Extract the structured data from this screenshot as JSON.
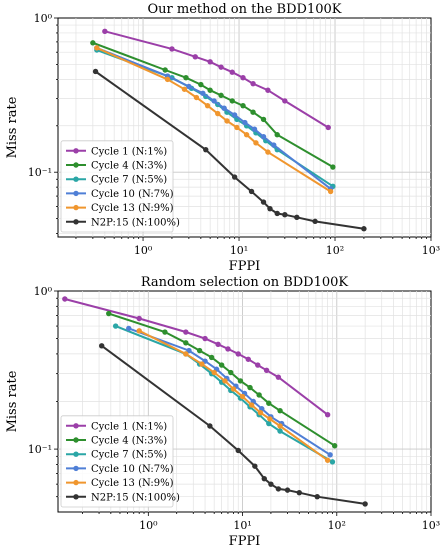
{
  "chart_data": [
    {
      "type": "line",
      "title": "Our method on the BDD100K",
      "xlabel": "FPPI",
      "ylabel": "Miss rate",
      "xscale": "log",
      "yscale": "log",
      "xlim": [
        0.13,
        1000
      ],
      "ylim": [
        0.038,
        1.0
      ],
      "x_tick_labels": [
        "10⁰",
        "10¹",
        "10²",
        "10³"
      ],
      "y_tick_labels": [
        "10⁻¹",
        "10⁰"
      ],
      "grid": true,
      "legend_position": "lower-left",
      "series": [
        {
          "name": "Cycle 1 (N:1%)",
          "color": "#9b3fa8",
          "x": [
            0.4,
            2.0,
            3.5,
            5.0,
            6.5,
            8.5,
            11,
            14,
            20,
            30,
            85
          ],
          "y": [
            0.82,
            0.63,
            0.56,
            0.52,
            0.48,
            0.445,
            0.41,
            0.375,
            0.34,
            0.29,
            0.195
          ]
        },
        {
          "name": "Cycle 4 (N:3%)",
          "color": "#2e8f2e",
          "x": [
            0.3,
            1.7,
            2.8,
            4.0,
            5.0,
            6.5,
            8.5,
            11,
            14,
            18,
            25,
            95
          ],
          "y": [
            0.69,
            0.46,
            0.41,
            0.37,
            0.34,
            0.315,
            0.29,
            0.27,
            0.245,
            0.22,
            0.175,
            0.108
          ]
        },
        {
          "name": "Cycle 7 (N:5%)",
          "color": "#2aa6a6",
          "x": [
            0.33,
            2.0,
            3.2,
            4.5,
            6.0,
            7.5,
            9.5,
            12,
            15,
            19,
            25,
            95
          ],
          "y": [
            0.62,
            0.41,
            0.35,
            0.31,
            0.275,
            0.245,
            0.22,
            0.2,
            0.18,
            0.16,
            0.14,
            0.081
          ]
        },
        {
          "name": "Cycle 10 (N:7%)",
          "color": "#4f7fd6",
          "x": [
            0.33,
            1.8,
            3.0,
            4.2,
            5.5,
            7.0,
            9.0,
            11.5,
            14.5,
            18,
            23,
            90
          ],
          "y": [
            0.64,
            0.42,
            0.36,
            0.325,
            0.29,
            0.26,
            0.235,
            0.21,
            0.19,
            0.17,
            0.15,
            0.078
          ]
        },
        {
          "name": "Cycle 13 (N:9%)",
          "color": "#f0962e",
          "x": [
            0.33,
            1.8,
            2.7,
            3.6,
            4.7,
            6.0,
            7.5,
            9.5,
            12,
            15,
            20,
            90
          ],
          "y": [
            0.64,
            0.4,
            0.345,
            0.305,
            0.27,
            0.24,
            0.215,
            0.195,
            0.175,
            0.155,
            0.135,
            0.075
          ]
        },
        {
          "name": "N2P:15 (N:100%)",
          "color": "#333333",
          "x": [
            0.32,
            4.5,
            9.0,
            13.5,
            18,
            21,
            25,
            30,
            40,
            62,
            200
          ],
          "y": [
            0.45,
            0.14,
            0.093,
            0.075,
            0.064,
            0.058,
            0.054,
            0.053,
            0.051,
            0.048,
            0.043
          ]
        }
      ]
    },
    {
      "type": "line",
      "title": "Random selection on BDD100K",
      "xlabel": "FPPI",
      "ylabel": "Miss rate",
      "xscale": "log",
      "yscale": "log",
      "xlim": [
        0.11,
        1000
      ],
      "ylim": [
        0.04,
        1.0
      ],
      "x_tick_labels": [
        "10⁰",
        "10¹",
        "10²",
        "10³"
      ],
      "y_tick_labels": [
        "10⁻¹",
        "10⁰"
      ],
      "grid": true,
      "legend_position": "lower-left",
      "series": [
        {
          "name": "Cycle 1 (N:1%)",
          "color": "#9b3fa8",
          "x": [
            0.13,
            0.8,
            2.5,
            4.0,
            5.5,
            7.0,
            9.0,
            11.5,
            14.5,
            18,
            24,
            80
          ],
          "y": [
            0.89,
            0.67,
            0.55,
            0.5,
            0.46,
            0.43,
            0.4,
            0.37,
            0.34,
            0.315,
            0.285,
            0.165
          ]
        },
        {
          "name": "Cycle 4 (N:3%)",
          "color": "#2e8f2e",
          "x": [
            0.38,
            1.5,
            2.5,
            3.5,
            4.7,
            6.0,
            7.5,
            9.5,
            12,
            15,
            19,
            25,
            95
          ],
          "y": [
            0.72,
            0.55,
            0.47,
            0.42,
            0.38,
            0.34,
            0.305,
            0.27,
            0.245,
            0.22,
            0.195,
            0.175,
            0.105
          ]
        },
        {
          "name": "Cycle 7 (N:5%)",
          "color": "#2aa6a6",
          "x": [
            0.45,
            2.5,
            3.5,
            4.7,
            6.0,
            7.5,
            9.5,
            12,
            15,
            19,
            25,
            90
          ],
          "y": [
            0.6,
            0.4,
            0.345,
            0.3,
            0.265,
            0.235,
            0.21,
            0.185,
            0.165,
            0.145,
            0.13,
            0.083
          ]
        },
        {
          "name": "Cycle 10 (N:7%)",
          "color": "#4f7fd6",
          "x": [
            0.62,
            2.7,
            4.0,
            5.3,
            6.8,
            8.5,
            10.5,
            13,
            16,
            20,
            26,
            85
          ],
          "y": [
            0.58,
            0.42,
            0.36,
            0.32,
            0.28,
            0.25,
            0.225,
            0.2,
            0.18,
            0.16,
            0.145,
            0.092
          ]
        },
        {
          "name": "Cycle 13 (N:9%)",
          "color": "#f0962e",
          "x": [
            0.8,
            2.5,
            3.7,
            5.0,
            6.5,
            8.0,
            10,
            12.5,
            15.5,
            19.5,
            25,
            80
          ],
          "y": [
            0.56,
            0.4,
            0.345,
            0.305,
            0.27,
            0.24,
            0.215,
            0.19,
            0.17,
            0.155,
            0.14,
            0.085
          ]
        },
        {
          "name": "N2P:15 (N:100%)",
          "color": "#333333",
          "x": [
            0.32,
            4.5,
            9.0,
            13.5,
            17,
            20,
            24,
            30,
            40,
            62,
            200
          ],
          "y": [
            0.45,
            0.14,
            0.098,
            0.078,
            0.065,
            0.06,
            0.056,
            0.055,
            0.053,
            0.05,
            0.045
          ]
        }
      ]
    }
  ]
}
